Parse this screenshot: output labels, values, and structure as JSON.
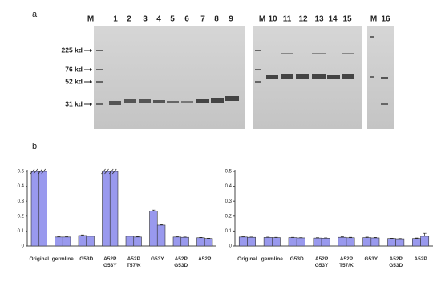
{
  "panel_a": {
    "label": "a",
    "lane_labels": [
      "M",
      "1",
      "2",
      "3",
      "4",
      "5",
      "6",
      "7",
      "8",
      "9",
      "M",
      "10",
      "11",
      "12",
      "13",
      "14",
      "15",
      "M",
      "16"
    ],
    "size_markers": [
      "225 kd",
      "76 kd",
      "52 kd",
      "31 kd"
    ]
  },
  "panel_b": {
    "label": "b"
  },
  "chart_data": [
    {
      "type": "bar",
      "categories": [
        "Original",
        "germline",
        "G53D",
        "A52P G53Y",
        "A52P T57/K",
        "G53Y",
        "A52P G53D",
        "A52P"
      ],
      "series": [
        {
          "color": "#9999ee",
          "values": [
            0.5,
            0.06,
            0.07,
            0.5,
            0.065,
            0.235,
            0.06,
            0.055
          ],
          "errors": [
            0,
            0.002,
            0.004,
            0,
            0.003,
            0.006,
            0.002,
            0.002
          ]
        },
        {
          "color": "#9999ee",
          "values": [
            0.5,
            0.06,
            0.065,
            0.5,
            0.06,
            0.14,
            0.058,
            0.05
          ],
          "errors": [
            0,
            0.002,
            0.003,
            0,
            0.004,
            0.004,
            0.002,
            0.002
          ]
        }
      ],
      "ylim": [
        0,
        0.5
      ],
      "yticks": [
        0,
        0.1,
        0.2,
        0.3,
        0.4,
        0.5
      ]
    },
    {
      "type": "bar",
      "categories": [
        "Original",
        "germline",
        "G53D",
        "A52P G53Y",
        "A52P T57/K",
        "G53Y",
        "A52P G53D",
        "A52P"
      ],
      "series": [
        {
          "color": "#9999ee",
          "values": [
            0.06,
            0.057,
            0.056,
            0.053,
            0.058,
            0.056,
            0.05,
            0.05
          ],
          "errors": [
            0.002,
            0.002,
            0.002,
            0.002,
            0.003,
            0.003,
            0.002,
            0.003
          ]
        },
        {
          "color": "#9999ee",
          "values": [
            0.058,
            0.056,
            0.054,
            0.052,
            0.055,
            0.054,
            0.048,
            0.065
          ],
          "errors": [
            0.002,
            0.002,
            0.002,
            0.002,
            0.003,
            0.003,
            0.002,
            0.02
          ]
        }
      ],
      "ylim": [
        0,
        0.5
      ],
      "yticks": [
        0,
        0.1,
        0.2,
        0.3,
        0.4,
        0.5
      ]
    }
  ]
}
